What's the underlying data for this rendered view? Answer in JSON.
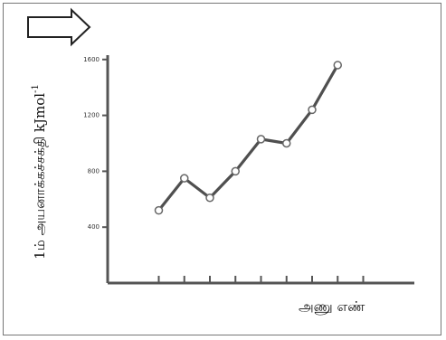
{
  "chart_data": {
    "type": "line",
    "title": "",
    "xlabel": "அணு எண்",
    "ylabel": "1ம் அயனாக்கச்சக்தி kJmol",
    "ylabel_superscript": "-1",
    "y_ticks": [
      "400",
      "800",
      "1200",
      "1600"
    ],
    "ylim": [
      0,
      2000
    ],
    "xlim": [
      0,
      12
    ],
    "x": [
      2,
      3,
      4,
      5,
      6,
      7,
      8,
      9
    ],
    "series": [
      {
        "values": [
          520,
          750,
          610,
          800,
          1030,
          1000,
          1240,
          1560
        ]
      }
    ],
    "marker": "circle",
    "grid": false,
    "colors": {
      "line": "#4f4f4f",
      "axis": "#555555"
    }
  },
  "icons": {
    "arrow": "right-arrow-outline-icon"
  }
}
